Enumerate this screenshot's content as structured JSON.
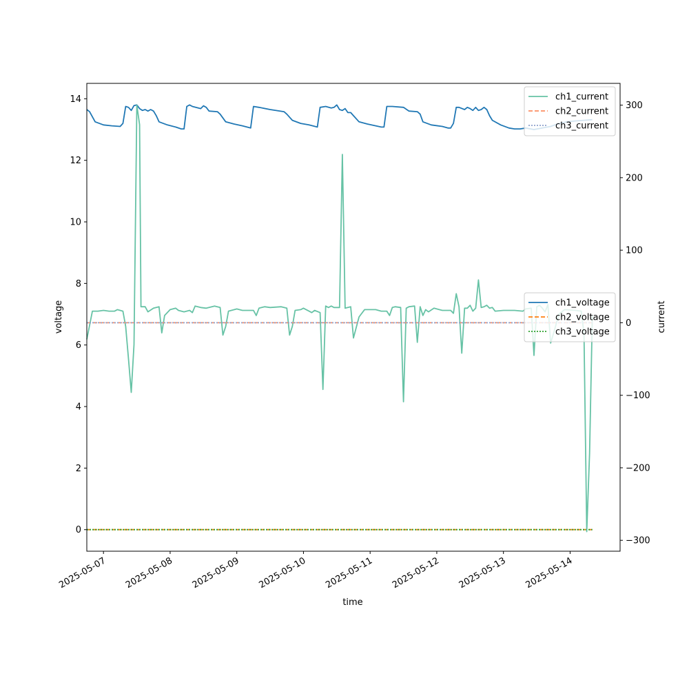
{
  "chart_data": {
    "type": "line",
    "xlabel": "time",
    "x_ticks": [
      "2025-05-07",
      "2025-05-08",
      "2025-05-09",
      "2025-05-10",
      "2025-05-11",
      "2025-05-12",
      "2025-05-13",
      "2025-05-14"
    ],
    "x_range": [
      "2025-05-06 18:00",
      "2025-05-14 18:00"
    ],
    "left_axis": {
      "label": "voltage",
      "ylim": [
        -0.7,
        14.5
      ],
      "ticks": [
        "0",
        "2",
        "4",
        "6",
        "8",
        "10",
        "12",
        "14"
      ]
    },
    "right_axis": {
      "label": "current",
      "ylim": [
        -315,
        330
      ],
      "ticks": [
        "−300",
        "−200",
        "−100",
        "0",
        "100",
        "200",
        "300"
      ]
    },
    "legend_current": {
      "placement": "top-right",
      "entries": [
        "ch1_current",
        "ch2_current",
        "ch3_current"
      ]
    },
    "legend_voltage": {
      "placement": "center-right",
      "entries": [
        "ch1_voltage",
        "ch2_voltage",
        "ch3_voltage"
      ]
    },
    "series": [
      {
        "name": "ch1_voltage",
        "axis": "left",
        "color": "#1f77b4",
        "dash": "solid",
        "points": [
          [
            "2025-05-06 18:00",
            13.65
          ],
          [
            "2025-05-06 19:00",
            13.58
          ],
          [
            "2025-05-06 21:00",
            13.25
          ],
          [
            "2025-05-07 00:00",
            13.15
          ],
          [
            "2025-05-07 03:00",
            13.12
          ],
          [
            "2025-05-07 06:00",
            13.1
          ],
          [
            "2025-05-07 07:00",
            13.2
          ],
          [
            "2025-05-07 08:00",
            13.75
          ],
          [
            "2025-05-07 09:00",
            13.72
          ],
          [
            "2025-05-07 10:00",
            13.62
          ],
          [
            "2025-05-07 11:00",
            13.78
          ],
          [
            "2025-05-07 12:00",
            13.8
          ],
          [
            "2025-05-07 13:00",
            13.68
          ],
          [
            "2025-05-07 14:00",
            13.62
          ],
          [
            "2025-05-07 15:00",
            13.65
          ],
          [
            "2025-05-07 16:00",
            13.6
          ],
          [
            "2025-05-07 17:00",
            13.65
          ],
          [
            "2025-05-07 18:00",
            13.6
          ],
          [
            "2025-05-07 19:00",
            13.45
          ],
          [
            "2025-05-07 20:00",
            13.25
          ],
          [
            "2025-05-07 23:00",
            13.15
          ],
          [
            "2025-05-08 02:00",
            13.08
          ],
          [
            "2025-05-08 04:00",
            13.02
          ],
          [
            "2025-05-08 05:00",
            13.02
          ],
          [
            "2025-05-08 06:00",
            13.75
          ],
          [
            "2025-05-08 07:00",
            13.8
          ],
          [
            "2025-05-08 08:00",
            13.75
          ],
          [
            "2025-05-08 11:00",
            13.68
          ],
          [
            "2025-05-08 12:00",
            13.77
          ],
          [
            "2025-05-08 13:00",
            13.72
          ],
          [
            "2025-05-08 14:00",
            13.6
          ],
          [
            "2025-05-08 17:00",
            13.58
          ],
          [
            "2025-05-08 18:00",
            13.5
          ],
          [
            "2025-05-08 20:00",
            13.25
          ],
          [
            "2025-05-08 23:00",
            13.18
          ],
          [
            "2025-05-09 02:00",
            13.12
          ],
          [
            "2025-05-09 05:00",
            13.05
          ],
          [
            "2025-05-09 06:00",
            13.75
          ],
          [
            "2025-05-09 08:00",
            13.72
          ],
          [
            "2025-05-09 12:00",
            13.65
          ],
          [
            "2025-05-09 17:00",
            13.58
          ],
          [
            "2025-05-09 18:00",
            13.5
          ],
          [
            "2025-05-09 20:00",
            13.3
          ],
          [
            "2025-05-09 23:00",
            13.2
          ],
          [
            "2025-05-10 02:00",
            13.15
          ],
          [
            "2025-05-10 05:00",
            13.08
          ],
          [
            "2025-05-10 06:00",
            13.72
          ],
          [
            "2025-05-10 08:00",
            13.75
          ],
          [
            "2025-05-10 10:00",
            13.7
          ],
          [
            "2025-05-10 11:00",
            13.72
          ],
          [
            "2025-05-10 12:00",
            13.8
          ],
          [
            "2025-05-10 13:00",
            13.65
          ],
          [
            "2025-05-10 14:00",
            13.62
          ],
          [
            "2025-05-10 15:00",
            13.68
          ],
          [
            "2025-05-10 16:00",
            13.55
          ],
          [
            "2025-05-10 17:00",
            13.55
          ],
          [
            "2025-05-10 18:00",
            13.45
          ],
          [
            "2025-05-10 20:00",
            13.25
          ],
          [
            "2025-05-10 23:00",
            13.18
          ],
          [
            "2025-05-11 02:00",
            13.12
          ],
          [
            "2025-05-11 04:00",
            13.08
          ],
          [
            "2025-05-11 05:00",
            13.08
          ],
          [
            "2025-05-11 06:00",
            13.75
          ],
          [
            "2025-05-11 08:00",
            13.75
          ],
          [
            "2025-05-11 12:00",
            13.72
          ],
          [
            "2025-05-11 14:00",
            13.6
          ],
          [
            "2025-05-11 17:00",
            13.58
          ],
          [
            "2025-05-11 18:00",
            13.5
          ],
          [
            "2025-05-11 19:00",
            13.25
          ],
          [
            "2025-05-11 22:00",
            13.15
          ],
          [
            "2025-05-12 02:00",
            13.1
          ],
          [
            "2025-05-12 04:00",
            13.05
          ],
          [
            "2025-05-12 05:00",
            13.05
          ],
          [
            "2025-05-12 06:00",
            13.2
          ],
          [
            "2025-05-12 07:00",
            13.72
          ],
          [
            "2025-05-12 08:00",
            13.72
          ],
          [
            "2025-05-12 10:00",
            13.65
          ],
          [
            "2025-05-12 11:00",
            13.72
          ],
          [
            "2025-05-12 12:00",
            13.68
          ],
          [
            "2025-05-12 13:00",
            13.62
          ],
          [
            "2025-05-12 14:00",
            13.72
          ],
          [
            "2025-05-12 15:00",
            13.62
          ],
          [
            "2025-05-12 16:00",
            13.65
          ],
          [
            "2025-05-12 17:00",
            13.72
          ],
          [
            "2025-05-12 18:00",
            13.65
          ],
          [
            "2025-05-12 19:00",
            13.45
          ],
          [
            "2025-05-12 20:00",
            13.3
          ],
          [
            "2025-05-12 23:00",
            13.15
          ],
          [
            "2025-05-13 02:00",
            13.05
          ],
          [
            "2025-05-13 04:00",
            13.02
          ],
          [
            "2025-05-13 06:00",
            13.02
          ],
          [
            "2025-05-13 08:00",
            13.05
          ],
          [
            "2025-05-13 11:00",
            13.0
          ],
          [
            "2025-05-13 14:00",
            13.05
          ],
          [
            "2025-05-13 17:00",
            13.1
          ],
          [
            "2025-05-13 20:00",
            13.2
          ],
          [
            "2025-05-13 23:00",
            13.25
          ],
          [
            "2025-05-14 02:00",
            13.28
          ],
          [
            "2025-05-14 05:00",
            13.3
          ],
          [
            "2025-05-14 08:00",
            13.32
          ]
        ]
      },
      {
        "name": "ch2_voltage",
        "axis": "left",
        "color": "#ff7f0e",
        "dash": "dashed",
        "points": [
          [
            "2025-05-06 18:00",
            0
          ],
          [
            "2025-05-14 08:00",
            0
          ]
        ]
      },
      {
        "name": "ch3_voltage",
        "axis": "left",
        "color": "#2ca02c",
        "dash": "dotted",
        "points": [
          [
            "2025-05-06 18:00",
            0
          ],
          [
            "2025-05-14 08:00",
            0
          ]
        ]
      },
      {
        "name": "ch1_current",
        "axis": "right",
        "color": "#66c2a5",
        "dash": "solid",
        "points": [
          [
            "2025-05-06 18:00",
            -23
          ],
          [
            "2025-05-06 20:00",
            16
          ],
          [
            "2025-05-06 22:00",
            16
          ],
          [
            "2025-05-07 00:00",
            17
          ],
          [
            "2025-05-07 02:00",
            16
          ],
          [
            "2025-05-07 04:00",
            16
          ],
          [
            "2025-05-07 05:00",
            18
          ],
          [
            "2025-05-07 07:00",
            16
          ],
          [
            "2025-05-07 08:00",
            -5
          ],
          [
            "2025-05-07 09:00",
            -50
          ],
          [
            "2025-05-07 10:00",
            -96
          ],
          [
            "2025-05-07 11:00",
            -30
          ],
          [
            "2025-05-07 12:00",
            300
          ],
          [
            "2025-05-07 13:00",
            273
          ],
          [
            "2025-05-07 13:30",
            22
          ],
          [
            "2025-05-07 15:00",
            22
          ],
          [
            "2025-05-07 16:00",
            15
          ],
          [
            "2025-05-07 18:00",
            20
          ],
          [
            "2025-05-07 20:00",
            22
          ],
          [
            "2025-05-07 21:00",
            -14
          ],
          [
            "2025-05-07 22:00",
            10
          ],
          [
            "2025-05-08 00:00",
            18
          ],
          [
            "2025-05-08 02:00",
            20
          ],
          [
            "2025-05-08 03:00",
            17
          ],
          [
            "2025-05-08 05:00",
            15
          ],
          [
            "2025-05-08 07:00",
            17
          ],
          [
            "2025-05-08 08:00",
            14
          ],
          [
            "2025-05-08 09:00",
            23
          ],
          [
            "2025-05-08 11:00",
            21
          ],
          [
            "2025-05-08 13:00",
            20
          ],
          [
            "2025-05-08 15:00",
            22
          ],
          [
            "2025-05-08 16:00",
            23
          ],
          [
            "2025-05-08 18:00",
            21
          ],
          [
            "2025-05-08 19:00",
            -17
          ],
          [
            "2025-05-08 20:00",
            -5
          ],
          [
            "2025-05-08 21:00",
            16
          ],
          [
            "2025-05-09 00:00",
            19
          ],
          [
            "2025-05-09 02:00",
            17
          ],
          [
            "2025-05-09 06:00",
            17
          ],
          [
            "2025-05-09 07:00",
            10
          ],
          [
            "2025-05-09 08:00",
            20
          ],
          [
            "2025-05-09 10:00",
            22
          ],
          [
            "2025-05-09 12:00",
            21
          ],
          [
            "2025-05-09 16:00",
            22
          ],
          [
            "2025-05-09 18:00",
            20
          ],
          [
            "2025-05-09 19:00",
            -17
          ],
          [
            "2025-05-09 20:00",
            -5
          ],
          [
            "2025-05-09 21:00",
            17
          ],
          [
            "2025-05-09 23:00",
            18
          ],
          [
            "2025-05-10 00:00",
            20
          ],
          [
            "2025-05-10 02:00",
            16
          ],
          [
            "2025-05-10 03:00",
            14
          ],
          [
            "2025-05-10 04:00",
            17
          ],
          [
            "2025-05-10 06:00",
            14
          ],
          [
            "2025-05-10 07:00",
            -92
          ],
          [
            "2025-05-10 08:00",
            23
          ],
          [
            "2025-05-10 09:00",
            21
          ],
          [
            "2025-05-10 10:00",
            23
          ],
          [
            "2025-05-10 11:00",
            21
          ],
          [
            "2025-05-10 13:00",
            21
          ],
          [
            "2025-05-10 14:00",
            232
          ],
          [
            "2025-05-10 15:00",
            20
          ],
          [
            "2025-05-10 17:00",
            22
          ],
          [
            "2025-05-10 18:00",
            -21
          ],
          [
            "2025-05-10 20:00",
            8
          ],
          [
            "2025-05-10 22:00",
            18
          ],
          [
            "2025-05-11 02:00",
            18
          ],
          [
            "2025-05-11 04:00",
            16
          ],
          [
            "2025-05-11 06:00",
            16
          ],
          [
            "2025-05-11 07:00",
            10
          ],
          [
            "2025-05-11 08:00",
            21
          ],
          [
            "2025-05-11 09:00",
            22
          ],
          [
            "2025-05-11 11:00",
            21
          ],
          [
            "2025-05-11 12:00",
            -109
          ],
          [
            "2025-05-11 13:00",
            20
          ],
          [
            "2025-05-11 14:00",
            22
          ],
          [
            "2025-05-11 16:00",
            23
          ],
          [
            "2025-05-11 17:00",
            -27
          ],
          [
            "2025-05-11 18:00",
            22
          ],
          [
            "2025-05-11 19:00",
            10
          ],
          [
            "2025-05-11 20:00",
            18
          ],
          [
            "2025-05-11 21:00",
            15
          ],
          [
            "2025-05-11 23:00",
            20
          ],
          [
            "2025-05-12 02:00",
            17
          ],
          [
            "2025-05-12 05:00",
            17
          ],
          [
            "2025-05-12 06:00",
            13
          ],
          [
            "2025-05-12 07:00",
            40
          ],
          [
            "2025-05-12 08:00",
            22
          ],
          [
            "2025-05-12 09:00",
            -42
          ],
          [
            "2025-05-12 10:00",
            20
          ],
          [
            "2025-05-12 11:00",
            20
          ],
          [
            "2025-05-12 12:00",
            24
          ],
          [
            "2025-05-12 13:00",
            16
          ],
          [
            "2025-05-12 14:00",
            20
          ],
          [
            "2025-05-12 15:00",
            59
          ],
          [
            "2025-05-12 16:00",
            21
          ],
          [
            "2025-05-12 17:00",
            22
          ],
          [
            "2025-05-12 18:00",
            24
          ],
          [
            "2025-05-12 19:00",
            20
          ],
          [
            "2025-05-12 20:00",
            21
          ],
          [
            "2025-05-12 21:00",
            16
          ],
          [
            "2025-05-13 00:00",
            17
          ],
          [
            "2025-05-13 04:00",
            17
          ],
          [
            "2025-05-13 07:00",
            16
          ],
          [
            "2025-05-13 08:00",
            19
          ],
          [
            "2025-05-13 10:00",
            20
          ],
          [
            "2025-05-13 11:00",
            -45
          ],
          [
            "2025-05-13 12:00",
            22
          ],
          [
            "2025-05-13 13:00",
            24
          ],
          [
            "2025-05-13 14:00",
            20
          ],
          [
            "2025-05-13 15:00",
            15
          ],
          [
            "2025-05-13 16:00",
            25
          ],
          [
            "2025-05-13 17:00",
            -28
          ],
          [
            "2025-05-13 18:00",
            -15
          ],
          [
            "2025-05-13 20:00",
            12
          ],
          [
            "2025-05-13 22:00",
            18
          ],
          [
            "2025-05-14 02:00",
            17
          ],
          [
            "2025-05-14 04:00",
            16
          ],
          [
            "2025-05-14 05:00",
            -15
          ],
          [
            "2025-05-14 06:00",
            -288
          ],
          [
            "2025-05-14 07:00",
            -180
          ],
          [
            "2025-05-14 08:00",
            10
          ]
        ]
      },
      {
        "name": "ch2_current",
        "axis": "right",
        "color": "#fc8d62",
        "dash": "dashed",
        "points": [
          [
            "2025-05-06 18:00",
            0
          ],
          [
            "2025-05-14 08:00",
            0
          ]
        ]
      },
      {
        "name": "ch3_current",
        "axis": "right",
        "color": "#8da0cb",
        "dash": "dotted",
        "points": [
          [
            "2025-05-06 18:00",
            0
          ],
          [
            "2025-05-14 08:00",
            0
          ]
        ]
      }
    ]
  }
}
